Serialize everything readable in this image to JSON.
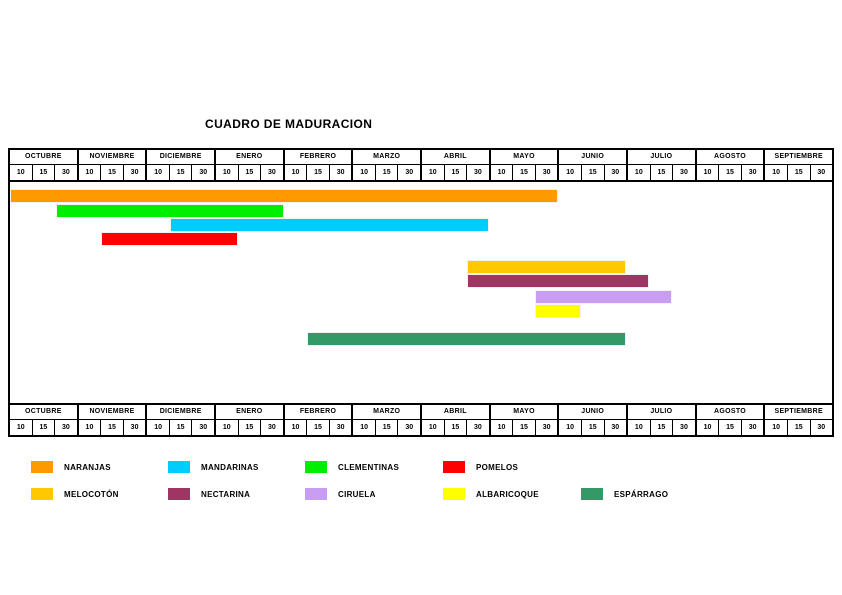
{
  "title": "CUADRO DE MADURACION",
  "axis": {
    "months": [
      "OCTUBRE",
      "NOVIEMBRE",
      "DICIEMBRE",
      "ENERO",
      "FEBRERO",
      "MARZO",
      "ABRIL",
      "MAYO",
      "JUNIO",
      "JULIO",
      "AGOSTO",
      "SEPTIEMBRE"
    ],
    "ticks": [
      "10",
      "15",
      "30"
    ]
  },
  "chart_data": {
    "type": "bar",
    "subtype": "gantt-maturation-calendar",
    "title": "CUADRO DE MADURACION",
    "x_axis": {
      "months": [
        "OCTUBRE",
        "NOVIEMBRE",
        "DICIEMBRE",
        "ENERO",
        "FEBRERO",
        "MARZO",
        "ABRIL",
        "MAYO",
        "JUNIO",
        "JULIO",
        "AGOSTO",
        "SEPTIEMBRE"
      ],
      "ticks_per_month": [
        "10",
        "15",
        "30"
      ],
      "total_cells": 36,
      "axis_shown": "top and bottom"
    },
    "series": [
      {
        "id": "naranjas",
        "name": "NARANJAS",
        "color": "#FF9900",
        "start": "OCTUBRE 10",
        "end": "MAYO 30",
        "start_cell": 0,
        "end_cell": 24
      },
      {
        "id": "clementinas",
        "name": "CLEMENTINAS",
        "color": "#00EE00",
        "start": "OCTUBRE 30",
        "end": "ENERO 30",
        "start_cell": 2,
        "end_cell": 12
      },
      {
        "id": "mandarinas",
        "name": "MANDARINAS",
        "color": "#00CCFF",
        "start": "DICIEMBRE 15",
        "end": "ABRIL 30",
        "start_cell": 7,
        "end_cell": 21
      },
      {
        "id": "pomelos",
        "name": "POMELOS",
        "color": "#FF0000",
        "start": "NOVIEMBRE 15",
        "end": "ENERO 10",
        "start_cell": 4,
        "end_cell": 10
      },
      {
        "id": "melocoton",
        "name": "MELOCOTÓN",
        "color": "#FFC800",
        "start": "ABRIL 30",
        "end": "JUNIO 30",
        "start_cell": 20,
        "end_cell": 27
      },
      {
        "id": "nectarina",
        "name": "NECTARINA",
        "color": "#9E3563",
        "start": "ABRIL 30",
        "end": "JULIO 10",
        "start_cell": 20,
        "end_cell": 28
      },
      {
        "id": "ciruela",
        "name": "CIRUELA",
        "color": "#C99EF2",
        "start": "MAYO 30",
        "end": "JULIO 15",
        "start_cell": 23,
        "end_cell": 29
      },
      {
        "id": "albaricoque",
        "name": "ALBARICOQUE",
        "color": "#FFFF00",
        "start": "MAYO 30",
        "end": "JUNIO 10",
        "start_cell": 23,
        "end_cell": 25
      },
      {
        "id": "esparrago",
        "name": "ESPÁRRAGO",
        "color": "#339966",
        "start": "FEBRERO 15",
        "end": "JUNIO 30",
        "start_cell": 13,
        "end_cell": 27
      }
    ],
    "legend_position": "bottom"
  },
  "legend": {
    "rows": [
      [
        {
          "id": "naranjas",
          "label": "NARANJAS",
          "color": "#FF9900"
        },
        {
          "id": "mandarinas",
          "label": "MANDARINAS",
          "color": "#00CCFF"
        },
        {
          "id": "clementinas",
          "label": "CLEMENTINAS",
          "color": "#00EE00"
        },
        {
          "id": "pomelos",
          "label": "POMELOS",
          "color": "#FF0000"
        }
      ],
      [
        {
          "id": "melocoton",
          "label": "MELOCOTÓN",
          "color": "#FFC800"
        },
        {
          "id": "nectarina",
          "label": "NECTARINA",
          "color": "#9E3563"
        },
        {
          "id": "ciruela",
          "label": "CIRUELA",
          "color": "#C99EF2"
        },
        {
          "id": "albaricoque",
          "label": "ALBARICOQUE",
          "color": "#FFFF00"
        },
        {
          "id": "esparrago",
          "label": "ESPÁRRAGO",
          "color": "#339966"
        }
      ]
    ]
  }
}
